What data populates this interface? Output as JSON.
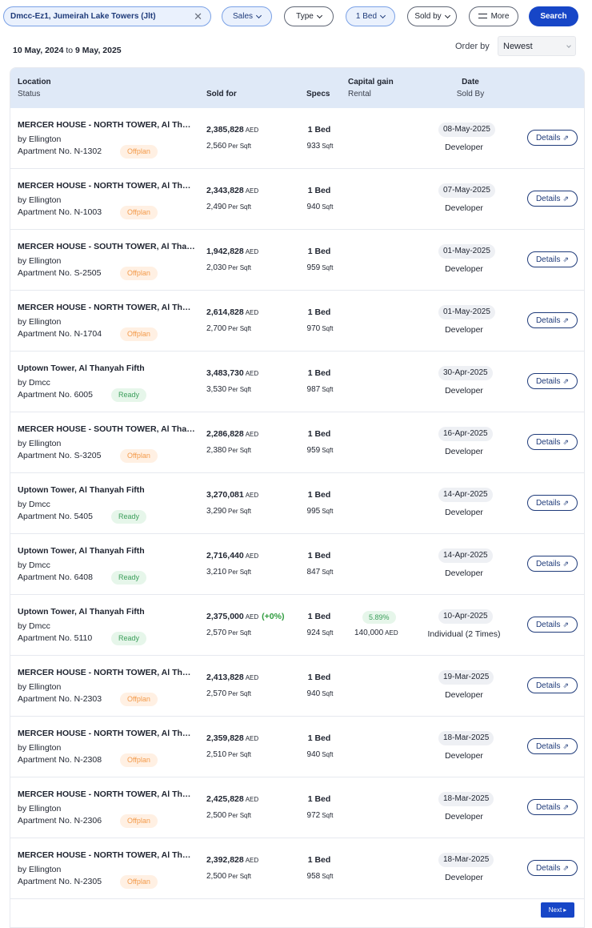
{
  "filters": {
    "search_value": "Dmcc-Ez1, Jumeirah Lake Towers (Jlt)",
    "clear_icon": "close-icon",
    "sales_label": "Sales",
    "type_label": "Type",
    "beds_label": "1 Bed",
    "soldby_label": "Sold by",
    "more_label": "More",
    "search_label": "Search"
  },
  "range": {
    "from": "10 May, 2024",
    "to_word": "to",
    "to": "9 May, 2025"
  },
  "order": {
    "label": "Order by",
    "value": "Newest"
  },
  "headers": {
    "location": "Location",
    "status": "Status",
    "sold_for": "Sold for",
    "specs": "Specs",
    "capital_gain": "Capital gain",
    "rental": "Rental",
    "date": "Date",
    "sold_by": "Sold By"
  },
  "labels": {
    "by": "by",
    "apartment_no": "Apartment  No.",
    "aed": "AED",
    "per_sqft": "Per Sqft",
    "sqft": "Sqft",
    "details": "Details",
    "next": "Next"
  },
  "rows": [
    {
      "name": "MERCER HOUSE - NORTH TOWER, Al Thanyah Fifth",
      "developer": "Ellington",
      "apt": "N-1302",
      "status": "Offplan",
      "price": "2,385,828",
      "change": "",
      "psf": "2,560",
      "beds": "1 Bed",
      "sqft": "933",
      "cap": "",
      "rent": "",
      "date": "08-May-2025",
      "sold_by": "Developer"
    },
    {
      "name": "MERCER HOUSE - NORTH TOWER, Al Thanyah Fifth",
      "developer": "Ellington",
      "apt": "N-1003",
      "status": "Offplan",
      "price": "2,343,828",
      "change": "",
      "psf": "2,490",
      "beds": "1 Bed",
      "sqft": "940",
      "cap": "",
      "rent": "",
      "date": "07-May-2025",
      "sold_by": "Developer"
    },
    {
      "name": "MERCER HOUSE - SOUTH TOWER, Al Thanyah Fifth",
      "developer": "Ellington",
      "apt": "S-2505",
      "status": "Offplan",
      "price": "1,942,828",
      "change": "",
      "psf": "2,030",
      "beds": "1 Bed",
      "sqft": "959",
      "cap": "",
      "rent": "",
      "date": "01-May-2025",
      "sold_by": "Developer"
    },
    {
      "name": "MERCER HOUSE - NORTH TOWER, Al Thanyah Fifth",
      "developer": "Ellington",
      "apt": "N-1704",
      "status": "Offplan",
      "price": "2,614,828",
      "change": "",
      "psf": "2,700",
      "beds": "1 Bed",
      "sqft": "970",
      "cap": "",
      "rent": "",
      "date": "01-May-2025",
      "sold_by": "Developer"
    },
    {
      "name": "Uptown Tower, Al Thanyah Fifth",
      "developer": "Dmcc",
      "apt": "6005",
      "status": "Ready",
      "price": "3,483,730",
      "change": "",
      "psf": "3,530",
      "beds": "1 Bed",
      "sqft": "987",
      "cap": "",
      "rent": "",
      "date": "30-Apr-2025",
      "sold_by": "Developer"
    },
    {
      "name": "MERCER HOUSE - SOUTH TOWER, Al Thanyah Fifth",
      "developer": "Ellington",
      "apt": "S-3205",
      "status": "Offplan",
      "price": "2,286,828",
      "change": "",
      "psf": "2,380",
      "beds": "1 Bed",
      "sqft": "959",
      "cap": "",
      "rent": "",
      "date": "16-Apr-2025",
      "sold_by": "Developer"
    },
    {
      "name": "Uptown Tower, Al Thanyah Fifth",
      "developer": "Dmcc",
      "apt": "5405",
      "status": "Ready",
      "price": "3,270,081",
      "change": "",
      "psf": "3,290",
      "beds": "1 Bed",
      "sqft": "995",
      "cap": "",
      "rent": "",
      "date": "14-Apr-2025",
      "sold_by": "Developer"
    },
    {
      "name": "Uptown Tower, Al Thanyah Fifth",
      "developer": "Dmcc",
      "apt": "6408",
      "status": "Ready",
      "price": "2,716,440",
      "change": "",
      "psf": "3,210",
      "beds": "1 Bed",
      "sqft": "847",
      "cap": "",
      "rent": "",
      "date": "14-Apr-2025",
      "sold_by": "Developer"
    },
    {
      "name": "Uptown Tower, Al Thanyah Fifth",
      "developer": "Dmcc",
      "apt": "5110",
      "status": "Ready",
      "price": "2,375,000",
      "change": "(+0%)",
      "psf": "2,570",
      "beds": "1 Bed",
      "sqft": "924",
      "cap": "5.89%",
      "rent": "140,000",
      "date": "10-Apr-2025",
      "sold_by": "Individual (2 Times)"
    },
    {
      "name": "MERCER HOUSE - NORTH TOWER, Al Thanyah Fifth",
      "developer": "Ellington",
      "apt": "N-2303",
      "status": "Offplan",
      "price": "2,413,828",
      "change": "",
      "psf": "2,570",
      "beds": "1 Bed",
      "sqft": "940",
      "cap": "",
      "rent": "",
      "date": "19-Mar-2025",
      "sold_by": "Developer"
    },
    {
      "name": "MERCER HOUSE - NORTH TOWER, Al Thanyah Fifth",
      "developer": "Ellington",
      "apt": "N-2308",
      "status": "Offplan",
      "price": "2,359,828",
      "change": "",
      "psf": "2,510",
      "beds": "1 Bed",
      "sqft": "940",
      "cap": "",
      "rent": "",
      "date": "18-Mar-2025",
      "sold_by": "Developer"
    },
    {
      "name": "MERCER HOUSE - NORTH TOWER, Al Thanyah Fifth",
      "developer": "Ellington",
      "apt": "N-2306",
      "status": "Offplan",
      "price": "2,425,828",
      "change": "",
      "psf": "2,500",
      "beds": "1 Bed",
      "sqft": "972",
      "cap": "",
      "rent": "",
      "date": "18-Mar-2025",
      "sold_by": "Developer"
    },
    {
      "name": "MERCER HOUSE - NORTH TOWER, Al Thanyah Fifth",
      "developer": "Ellington",
      "apt": "N-2305",
      "status": "Offplan",
      "price": "2,392,828",
      "change": "",
      "psf": "2,500",
      "beds": "1 Bed",
      "sqft": "958",
      "cap": "",
      "rent": "",
      "date": "18-Mar-2025",
      "sold_by": "Developer"
    }
  ]
}
